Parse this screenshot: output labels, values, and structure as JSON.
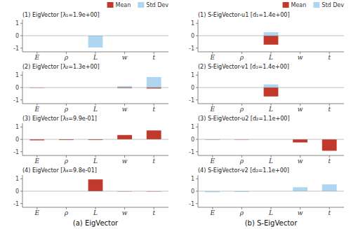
{
  "chart_data": [
    {
      "type": "bar",
      "title": "(1) EigVector [λ₁=1.9e+00]",
      "categories": [
        "E",
        "ρ",
        "L",
        "w",
        "t"
      ],
      "series": [
        {
          "name": "Mean",
          "color": "#C0392B",
          "values": [
            0.0,
            0.0,
            0.0,
            0.0,
            0.0
          ]
        },
        {
          "name": "Std Dev",
          "color": "#AED6F1",
          "values": [
            0.0,
            0.0,
            -0.95,
            0.0,
            0.0
          ]
        }
      ],
      "ylim": [
        -1.3,
        1.3
      ],
      "yticks": [
        -1,
        0,
        1
      ],
      "grid": false,
      "legend": "upper right"
    },
    {
      "type": "bar",
      "title": "(1) S-EigVector-u1 [d₁=1.4e+00]",
      "categories": [
        "E",
        "ρ",
        "L",
        "w",
        "t"
      ],
      "series": [
        {
          "name": "Mean",
          "color": "#C0392B",
          "values": [
            0.0,
            0.0,
            -0.72,
            0.0,
            0.0
          ]
        },
        {
          "name": "Std Dev",
          "color": "#AED6F1",
          "values": [
            0.0,
            0.0,
            0.28,
            0.0,
            0.0
          ]
        }
      ],
      "ylim": [
        -1.3,
        1.3
      ],
      "yticks": [
        -1,
        0,
        1
      ],
      "grid": false,
      "legend": "upper right"
    },
    {
      "type": "bar",
      "title": "(2) EigVector [λ₂=1.3e+00]",
      "categories": [
        "E",
        "ρ",
        "L",
        "w",
        "t"
      ],
      "series": [
        {
          "name": "Mean",
          "color": "#C0392B",
          "values": [
            -0.02,
            0.0,
            0.0,
            -0.05,
            -0.08
          ]
        },
        {
          "name": "Std Dev",
          "color": "#AED6F1",
          "values": [
            0.0,
            0.0,
            0.0,
            0.12,
            0.85
          ]
        }
      ],
      "ylim": [
        -1.3,
        1.3
      ],
      "yticks": [
        -1,
        0,
        1
      ],
      "grid": false,
      "legend": false
    },
    {
      "type": "bar",
      "title": "(2) S-EigVector-v1 [d₁=1.4e+00]",
      "categories": [
        "E",
        "ρ",
        "L",
        "w",
        "t"
      ],
      "series": [
        {
          "name": "Mean",
          "color": "#C0392B",
          "values": [
            0.0,
            0.0,
            -0.72,
            0.0,
            0.0
          ]
        },
        {
          "name": "Std Dev",
          "color": "#AED6F1",
          "values": [
            0.0,
            0.0,
            0.25,
            0.0,
            0.0
          ]
        }
      ],
      "ylim": [
        -1.3,
        1.3
      ],
      "yticks": [
        -1,
        0,
        1
      ],
      "grid": false,
      "legend": false
    },
    {
      "type": "bar",
      "title": "(3) EigVector [λ₃=9.9e-01]",
      "categories": [
        "E",
        "ρ",
        "L",
        "w",
        "t"
      ],
      "series": [
        {
          "name": "Mean",
          "color": "#C0392B",
          "values": [
            -0.08,
            -0.05,
            -0.05,
            0.35,
            0.72
          ]
        },
        {
          "name": "Std Dev",
          "color": "#AED6F1",
          "values": [
            0.0,
            0.0,
            0.0,
            0.0,
            0.0
          ]
        }
      ],
      "ylim": [
        -1.3,
        1.3
      ],
      "yticks": [
        -1,
        0,
        1
      ],
      "grid": false,
      "legend": false
    },
    {
      "type": "bar",
      "title": "(3) S-EigVector-u2 [d₂=1.1e+00]",
      "categories": [
        "E",
        "ρ",
        "L",
        "w",
        "t"
      ],
      "series": [
        {
          "name": "Mean",
          "color": "#C0392B",
          "values": [
            -0.02,
            -0.02,
            0.0,
            -0.25,
            -0.92
          ]
        },
        {
          "name": "Std Dev",
          "color": "#AED6F1",
          "values": [
            0.0,
            0.0,
            0.0,
            0.0,
            0.0
          ]
        }
      ],
      "ylim": [
        -1.3,
        1.3
      ],
      "yticks": [
        -1,
        0,
        1
      ],
      "grid": false,
      "legend": false
    },
    {
      "type": "bar",
      "title": "(4) EigVector [λ₄=9.8e-01]",
      "categories": [
        "E",
        "ρ",
        "L",
        "w",
        "t"
      ],
      "series": [
        {
          "name": "Mean",
          "color": "#C0392B",
          "values": [
            0.0,
            0.0,
            0.95,
            -0.02,
            -0.02
          ]
        },
        {
          "name": "Std Dev",
          "color": "#AED6F1",
          "values": [
            0.0,
            0.0,
            0.0,
            0.0,
            0.0
          ]
        }
      ],
      "ylim": [
        -1.3,
        1.3
      ],
      "yticks": [
        -1,
        0,
        1
      ],
      "grid": false,
      "legend": false,
      "annotations": [
        "(a)  EigVector"
      ]
    },
    {
      "type": "bar",
      "title": "(4) S-EigVector-v2 [d₂=1.1e+00]",
      "categories": [
        "E",
        "ρ",
        "L",
        "w",
        "t"
      ],
      "series": [
        {
          "name": "Mean",
          "color": "#C0392B",
          "values": [
            0.0,
            0.0,
            0.0,
            0.0,
            0.0
          ]
        },
        {
          "name": "Std Dev",
          "color": "#AED6F1",
          "values": [
            -0.08,
            -0.05,
            0.0,
            0.32,
            0.55
          ]
        }
      ],
      "ylim": [
        -1.3,
        1.3
      ],
      "yticks": [
        -1,
        0,
        1
      ],
      "grid": false,
      "legend": false,
      "annotations": [
        "(b)  S-EigVector"
      ]
    }
  ]
}
